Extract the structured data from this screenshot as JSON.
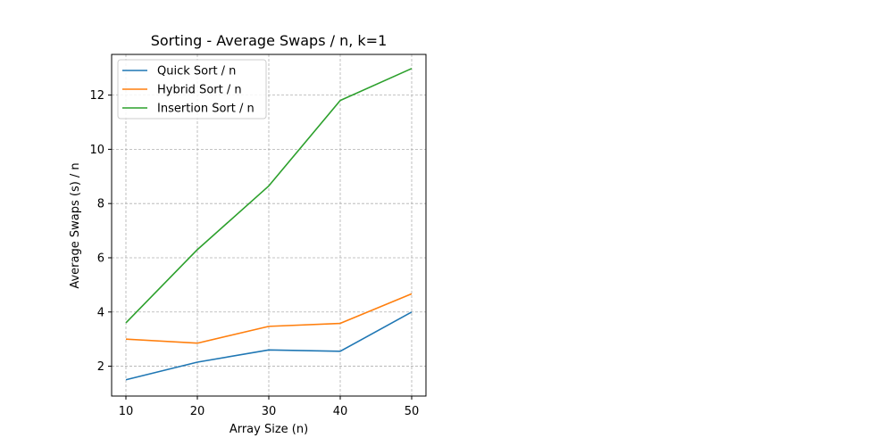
{
  "chart_data": {
    "type": "line",
    "title": "Sorting - Average Swaps / n, k=1",
    "xlabel": "Array Size (n)",
    "ylabel": "Average Swaps (s) / n",
    "x": [
      10,
      20,
      30,
      40,
      50
    ],
    "xlim": [
      8,
      52
    ],
    "ylim": [
      0.9,
      13.5
    ],
    "xticks": [
      10,
      20,
      30,
      40,
      50
    ],
    "yticks": [
      2,
      4,
      6,
      8,
      10,
      12
    ],
    "grid": true,
    "legend_position": "top-left",
    "series": [
      {
        "name": "Quick Sort / n",
        "color": "#1f77b4",
        "values": [
          1.5,
          2.15,
          2.6,
          2.55,
          4.0
        ]
      },
      {
        "name": "Hybrid Sort / n",
        "color": "#ff7f0e",
        "values": [
          3.0,
          2.85,
          3.47,
          3.58,
          4.67
        ]
      },
      {
        "name": "Insertion Sort / n",
        "color": "#2ca02c",
        "values": [
          3.6,
          6.3,
          8.65,
          11.8,
          12.98
        ]
      }
    ]
  }
}
